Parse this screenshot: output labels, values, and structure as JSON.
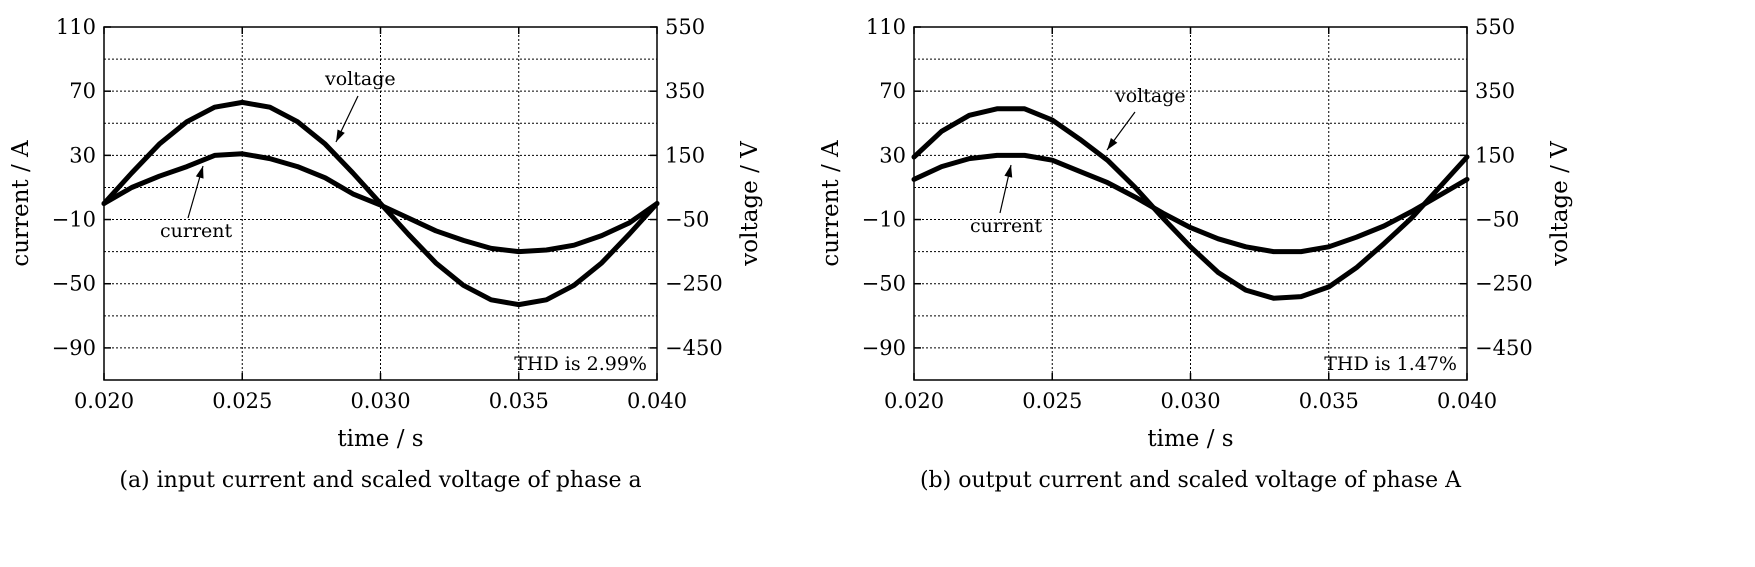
{
  "chart_data": [
    {
      "type": "line",
      "xlabel": "time / s",
      "ylabel": "current / A",
      "y2label": "voltage / V",
      "caption": "(a) input current and scaled voltage of phase a",
      "xlim": [
        0.02,
        0.04
      ],
      "ylim": [
        -110,
        110
      ],
      "y2lim": [
        -550,
        550
      ],
      "x_ticks": [
        "0.020",
        "0.025",
        "0.030",
        "0.035",
        "0.040"
      ],
      "x_tick_values": [
        0.02,
        0.025,
        0.03,
        0.035,
        0.04
      ],
      "y_ticks": [
        "110",
        "70",
        "30",
        "−10",
        "−50",
        "−90"
      ],
      "y_tick_values": [
        110,
        70,
        30,
        -10,
        -50,
        -90
      ],
      "y2_ticks": [
        "550",
        "350",
        "150",
        "−50",
        "−250",
        "−450"
      ],
      "grid": true,
      "annotation": "THD is 2.99%",
      "series": [
        {
          "name": "voltage",
          "x": [
            0.02,
            0.021,
            0.022,
            0.023,
            0.024,
            0.025,
            0.026,
            0.027,
            0.028,
            0.029,
            0.03,
            0.031,
            0.032,
            0.033,
            0.034,
            0.035,
            0.036,
            0.037,
            0.038,
            0.039,
            0.04
          ],
          "y": [
            0,
            19,
            37,
            51,
            60,
            63,
            60,
            51,
            37,
            19,
            0,
            -19,
            -37,
            -51,
            -60,
            -63,
            -60,
            -51,
            -37,
            -19,
            0
          ]
        },
        {
          "name": "current",
          "x": [
            0.02,
            0.021,
            0.022,
            0.023,
            0.024,
            0.025,
            0.026,
            0.027,
            0.028,
            0.029,
            0.03,
            0.031,
            0.032,
            0.033,
            0.034,
            0.035,
            0.036,
            0.037,
            0.038,
            0.039,
            0.04
          ],
          "y": [
            0,
            10,
            17,
            23,
            30,
            31,
            28,
            23,
            16,
            6,
            -1,
            -9,
            -17,
            -23,
            -28,
            -30,
            -29,
            -26,
            -20,
            -12,
            0
          ]
        }
      ],
      "series_labels": [
        "voltage",
        "current"
      ]
    },
    {
      "type": "line",
      "xlabel": "time / s",
      "ylabel": "current / A",
      "y2label": "voltage / V",
      "caption": "(b) output current and scaled voltage of phase A",
      "xlim": [
        0.02,
        0.04
      ],
      "ylim": [
        -110,
        110
      ],
      "y2lim": [
        -550,
        550
      ],
      "x_ticks": [
        "0.020",
        "0.025",
        "0.030",
        "0.035",
        "0.040"
      ],
      "x_tick_values": [
        0.02,
        0.025,
        0.03,
        0.035,
        0.04
      ],
      "y_ticks": [
        "110",
        "70",
        "30",
        "−10",
        "−50",
        "−90"
      ],
      "y_tick_values": [
        110,
        70,
        30,
        -10,
        -50,
        -90
      ],
      "y2_ticks": [
        "550",
        "350",
        "150",
        "−50",
        "−250",
        "−450"
      ],
      "grid": true,
      "annotation": "THD is 1.47%",
      "series": [
        {
          "name": "voltage",
          "x": [
            0.02,
            0.021,
            0.022,
            0.023,
            0.024,
            0.025,
            0.026,
            0.027,
            0.028,
            0.029,
            0.03,
            0.031,
            0.032,
            0.033,
            0.034,
            0.035,
            0.036,
            0.037,
            0.038,
            0.039,
            0.04
          ],
          "y": [
            29,
            45,
            55,
            59,
            59,
            52,
            40,
            27,
            10,
            -9,
            -27,
            -43,
            -54,
            -59,
            -58,
            -52,
            -40,
            -25,
            -9,
            10,
            29
          ]
        },
        {
          "name": "current",
          "x": [
            0.02,
            0.021,
            0.022,
            0.023,
            0.024,
            0.025,
            0.026,
            0.027,
            0.028,
            0.029,
            0.03,
            0.031,
            0.032,
            0.033,
            0.034,
            0.035,
            0.036,
            0.037,
            0.038,
            0.039,
            0.04
          ],
          "y": [
            15,
            23,
            28,
            30,
            30,
            27,
            20,
            13,
            4,
            -6,
            -15,
            -22,
            -27,
            -30,
            -30,
            -27,
            -21,
            -14,
            -5,
            5,
            15
          ]
        }
      ],
      "series_labels": [
        "voltage",
        "current"
      ]
    }
  ]
}
